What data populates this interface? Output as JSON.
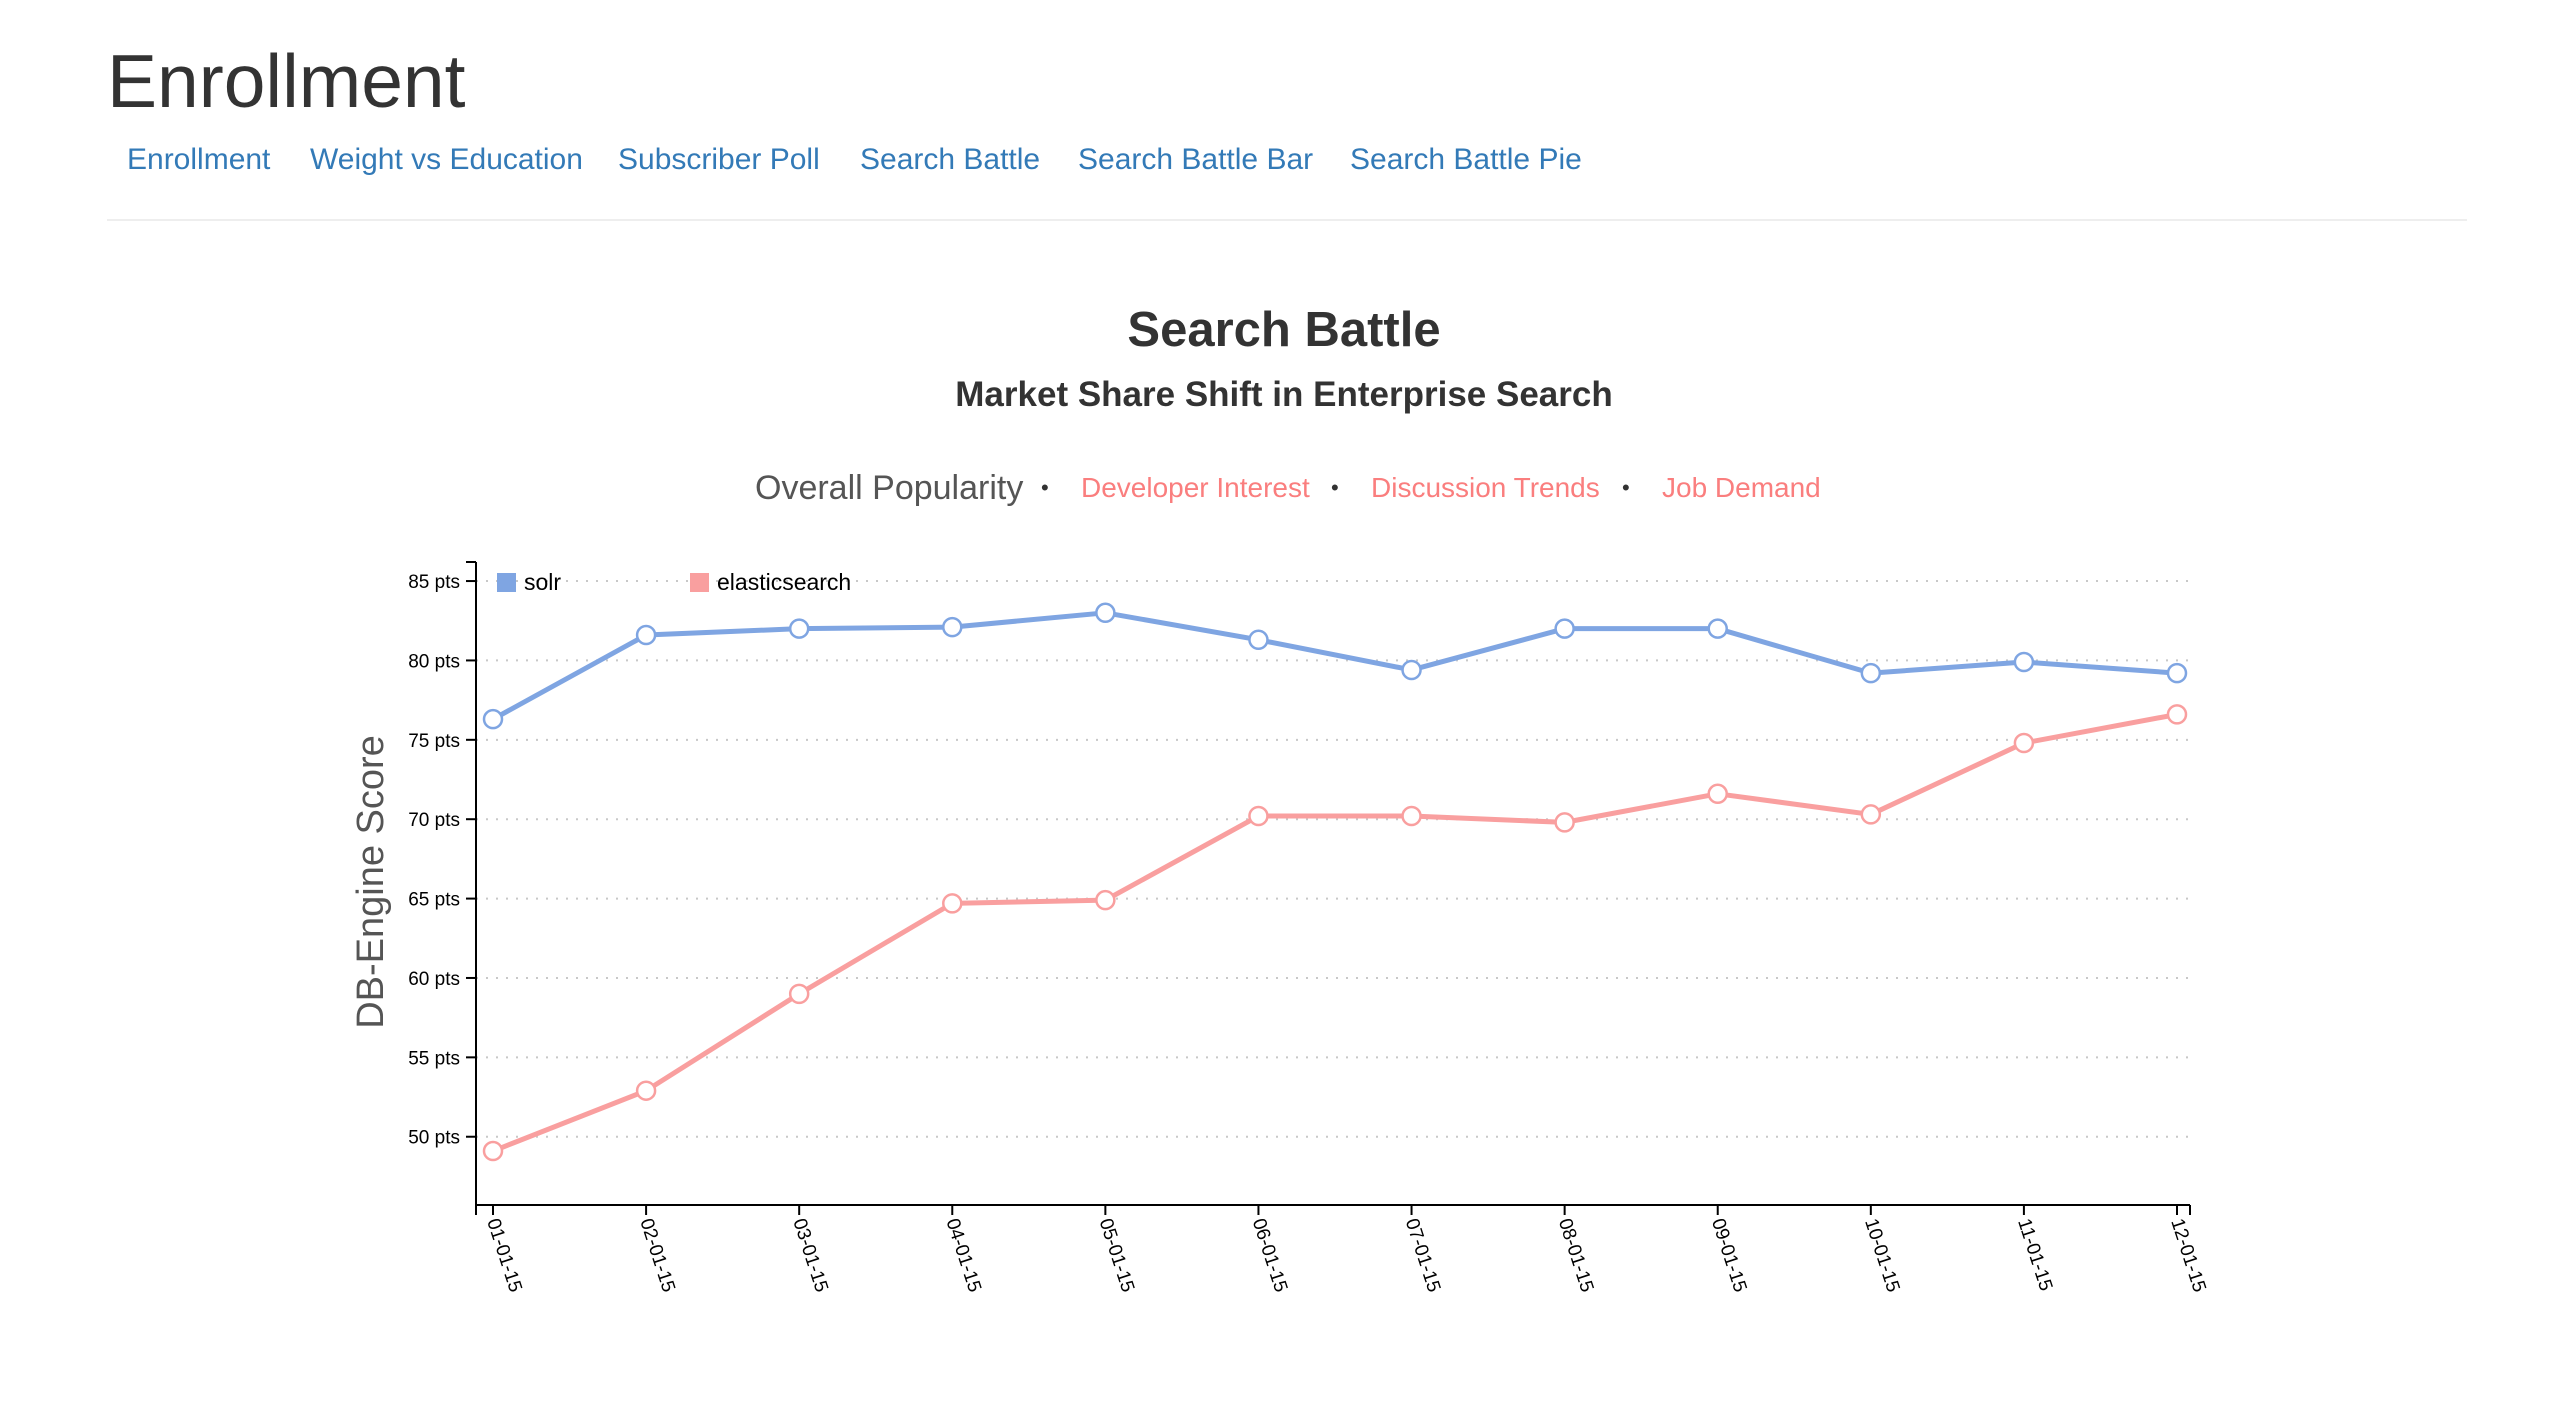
{
  "page": {
    "title": "Enrollment"
  },
  "nav": {
    "items": [
      {
        "label": "Enrollment"
      },
      {
        "label": "Weight vs Education"
      },
      {
        "label": "Subscriber Poll"
      },
      {
        "label": "Search Battle"
      },
      {
        "label": "Search Battle Bar"
      },
      {
        "label": "Search Battle Pie"
      }
    ]
  },
  "colors": {
    "link": "#337ab7",
    "inactive_tab": "#fa7e7e",
    "solr": "#7fa5e2",
    "elasticsearch": "#f99f9f"
  },
  "metrics": {
    "separator": "•",
    "items": [
      {
        "label": "Overall Popularity",
        "active": true
      },
      {
        "label": "Developer Interest",
        "active": false
      },
      {
        "label": "Discussion Trends",
        "active": false
      },
      {
        "label": "Job Demand",
        "active": false
      }
    ]
  },
  "chart_data": {
    "type": "line",
    "title": "Search Battle",
    "subtitle": "Market Share Shift in Enterprise Search",
    "xlabel": "",
    "ylabel": "DB-Engine Score",
    "x": [
      "01-01-15",
      "02-01-15",
      "03-01-15",
      "04-01-15",
      "05-01-15",
      "06-01-15",
      "07-01-15",
      "08-01-15",
      "09-01-15",
      "10-01-15",
      "11-01-15",
      "12-01-15"
    ],
    "y_tick_values": [
      50,
      55,
      60,
      65,
      70,
      75,
      80,
      85
    ],
    "y_tick_labels": [
      "50 pts",
      "55 pts",
      "60 pts",
      "65 pts",
      "70 pts",
      "75 pts",
      "80 pts",
      "85 pts"
    ],
    "ylim": [
      45.7,
      86.2
    ],
    "grid": "horizontal-dotted",
    "legend": "top-left",
    "series": [
      {
        "name": "solr",
        "color": "#7fa5e2",
        "values": [
          76.3,
          81.6,
          82.0,
          82.1,
          83.0,
          81.3,
          79.4,
          82.0,
          82.0,
          79.2,
          79.9,
          79.2
        ]
      },
      {
        "name": "elasticsearch",
        "color": "#f99f9f",
        "values": [
          49.1,
          52.9,
          59.0,
          64.7,
          64.9,
          70.2,
          70.2,
          69.8,
          71.6,
          70.3,
          74.8,
          76.6
        ]
      }
    ]
  }
}
